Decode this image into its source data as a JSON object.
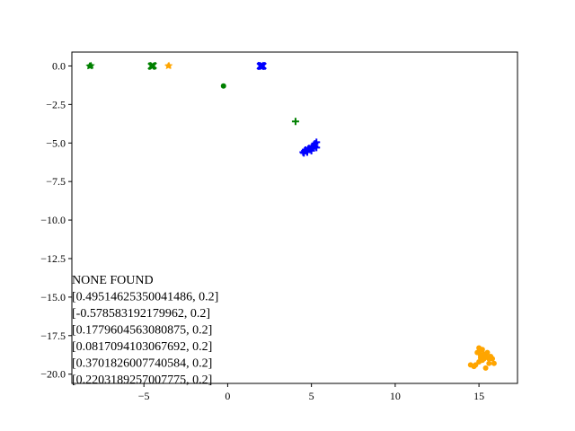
{
  "chart_data": {
    "type": "scatter",
    "title": "",
    "xlabel": "",
    "ylabel": "",
    "xlim": [
      -9.3,
      17.3
    ],
    "ylim": [
      -20.6,
      0.9
    ],
    "xticks": [
      -5,
      0,
      5,
      10,
      15
    ],
    "xtick_labels": [
      "−5",
      "0",
      "5",
      "10",
      "15"
    ],
    "yticks": [
      0.0,
      -2.5,
      -5.0,
      -7.5,
      -10.0,
      -12.5,
      -15.0,
      -17.5,
      -20.0
    ],
    "ytick_labels": [
      "0.0",
      "−2.5",
      "−5.0",
      "−7.5",
      "−10.0",
      "−12.5",
      "−15.0",
      "−17.5",
      "−20.0"
    ],
    "grid": false,
    "legend": "none",
    "annotations": [
      "NONE FOUND",
      "[0.49514625350041486, 0.2]",
      "[-0.578583192179962, 0.2]",
      "[0.1779604563080875, 0.2]",
      "[0.0817094103067692, 0.2]",
      "[0.3701826007740584, 0.2]",
      "[0.2203189257007775, 0.2]"
    ],
    "series": [
      {
        "color": "#008000",
        "marker": "star",
        "points": [
          [
            -8.2,
            0.0
          ],
          [
            -8.15,
            0.02
          ],
          [
            -8.25,
            -0.01
          ]
        ]
      },
      {
        "color": "#008000",
        "marker": "x",
        "points": [
          [
            -4.5,
            0.0
          ],
          [
            -4.45,
            0.01
          ],
          [
            -4.55,
            -0.01
          ]
        ]
      },
      {
        "color": "#FFA500",
        "marker": "star",
        "points": [
          [
            -3.55,
            0.0
          ],
          [
            -3.5,
            0.02
          ]
        ]
      },
      {
        "color": "#008000",
        "marker": "circle",
        "points": [
          [
            -0.25,
            -1.3
          ]
        ]
      },
      {
        "color": "#0000FF",
        "marker": "x",
        "points": [
          [
            2.0,
            0.0
          ],
          [
            2.05,
            0.01
          ],
          [
            1.95,
            -0.01
          ],
          [
            2.1,
            0.0
          ],
          [
            2.0,
            -0.02
          ],
          [
            1.98,
            0.02
          ],
          [
            2.08,
            -0.01
          ]
        ]
      },
      {
        "color": "#008000",
        "marker": "plus",
        "points": [
          [
            4.05,
            -3.6
          ]
        ]
      },
      {
        "color": "#0000FF",
        "marker": "plus",
        "points": [
          [
            4.5,
            -5.6
          ],
          [
            4.6,
            -5.5
          ],
          [
            4.7,
            -5.5
          ],
          [
            4.8,
            -5.4
          ],
          [
            4.9,
            -5.4
          ],
          [
            5.0,
            -5.3
          ],
          [
            5.1,
            -5.25
          ],
          [
            5.2,
            -5.2
          ],
          [
            5.3,
            -5.3
          ],
          [
            4.55,
            -5.65
          ],
          [
            4.75,
            -5.6
          ],
          [
            5.0,
            -5.5
          ],
          [
            5.2,
            -5.05
          ],
          [
            5.3,
            -4.95
          ],
          [
            4.65,
            -5.45
          ],
          [
            4.85,
            -5.35
          ],
          [
            5.05,
            -5.2
          ]
        ]
      },
      {
        "color": "#FFA500",
        "marker": "circle",
        "points": [
          [
            15.0,
            -18.3
          ],
          [
            15.2,
            -18.4
          ],
          [
            14.9,
            -18.6
          ],
          [
            15.1,
            -18.8
          ],
          [
            15.3,
            -18.7
          ],
          [
            15.5,
            -18.9
          ],
          [
            15.6,
            -19.0
          ],
          [
            15.8,
            -19.0
          ],
          [
            15.4,
            -18.75
          ],
          [
            15.2,
            -19.1
          ],
          [
            15.0,
            -19.2
          ],
          [
            15.6,
            -19.3
          ],
          [
            15.9,
            -19.3
          ],
          [
            14.8,
            -19.4
          ],
          [
            14.5,
            -19.4
          ],
          [
            14.7,
            -19.5
          ],
          [
            15.4,
            -19.6
          ],
          [
            15.1,
            -18.95
          ],
          [
            15.7,
            -18.85
          ],
          [
            15.3,
            -19.0
          ],
          [
            15.5,
            -18.6
          ],
          [
            15.05,
            -18.5
          ]
        ]
      }
    ]
  }
}
